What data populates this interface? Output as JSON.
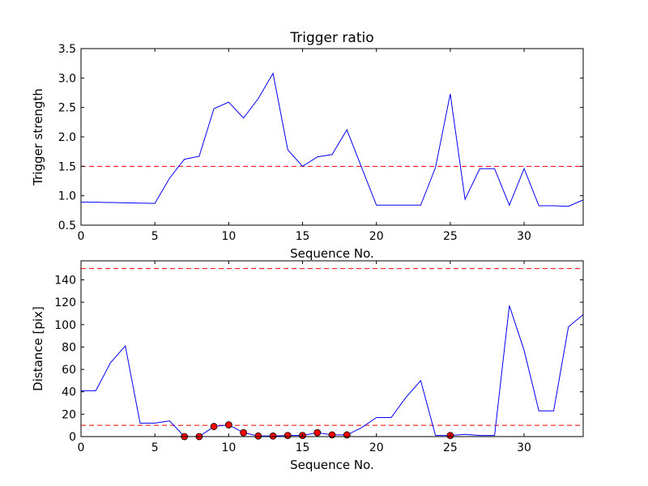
{
  "chart_data": [
    {
      "type": "line",
      "title": "Trigger ratio",
      "xlabel": "Sequence No.",
      "ylabel": "Trigger strength",
      "xlim": [
        0,
        34
      ],
      "ylim": [
        0.5,
        3.5
      ],
      "xticks": [
        0,
        5,
        10,
        15,
        20,
        25,
        30
      ],
      "xtick_labels": [
        "0",
        "5",
        "10",
        "15",
        "20",
        "25",
        "30"
      ],
      "yticks": [
        0.5,
        1.0,
        1.5,
        2.0,
        2.5,
        3.0,
        3.5
      ],
      "ytick_labels": [
        "0.5",
        "1.0",
        "1.5",
        "2.0",
        "2.5",
        "3.0",
        "3.5"
      ],
      "grid": false,
      "line_color": "#0000ff",
      "series": [
        {
          "x": [
            0,
            1,
            2,
            3,
            4,
            5,
            6,
            7,
            8,
            9,
            10,
            11,
            12,
            13,
            14,
            15,
            16,
            17,
            18,
            19,
            20,
            21,
            22,
            23,
            24,
            25,
            26,
            27,
            28,
            29,
            30,
            31,
            32,
            33,
            34
          ],
          "y": [
            0.89,
            0.89,
            0.885,
            0.88,
            0.875,
            0.87,
            1.3,
            1.62,
            1.67,
            2.48,
            2.59,
            2.32,
            2.65,
            3.08,
            1.78,
            1.5,
            1.66,
            1.7,
            2.12,
            1.48,
            0.84,
            0.84,
            0.84,
            0.84,
            1.48,
            2.73,
            0.94,
            1.46,
            1.46,
            0.84,
            1.46,
            0.83,
            0.83,
            0.82,
            0.93
          ]
        }
      ],
      "thresholds": [
        {
          "y": 1.5,
          "color": "#ff0000",
          "style": "dashed"
        }
      ]
    },
    {
      "type": "line",
      "title": "",
      "xlabel": "Sequence No.",
      "ylabel": "Distance [pix]",
      "xlim": [
        0,
        34
      ],
      "ylim": [
        0,
        157
      ],
      "xticks": [
        0,
        5,
        10,
        15,
        20,
        25,
        30
      ],
      "xtick_labels": [
        "0",
        "5",
        "10",
        "15",
        "20",
        "25",
        "30"
      ],
      "yticks": [
        0,
        20,
        40,
        60,
        80,
        100,
        120,
        140
      ],
      "ytick_labels": [
        "0",
        "20",
        "40",
        "60",
        "80",
        "100",
        "120",
        "140"
      ],
      "grid": false,
      "line_color": "#0000ff",
      "marker_color": "#ff0000",
      "series": [
        {
          "x": [
            0,
            1,
            2,
            3,
            4,
            5,
            6,
            7,
            8,
            9,
            10,
            11,
            12,
            13,
            14,
            15,
            16,
            17,
            18,
            19,
            20,
            21,
            22,
            23,
            24,
            25,
            26,
            27,
            28,
            29,
            30,
            31,
            32,
            33,
            34
          ],
          "y": [
            41,
            41,
            66,
            81,
            12,
            12,
            14,
            0,
            0,
            9,
            10.5,
            3.5,
            0.5,
            0.5,
            1,
            1,
            3.5,
            1.5,
            1.5,
            8,
            17,
            17,
            35,
            50,
            1,
            1,
            2,
            1,
            1,
            117,
            77,
            23,
            23,
            98,
            109
          ]
        }
      ],
      "markers": {
        "x": [
          7,
          8,
          9,
          10,
          11,
          12,
          13,
          14,
          15,
          16,
          17,
          18,
          25
        ],
        "y": [
          0,
          0,
          9,
          10.5,
          3.5,
          0.5,
          0.5,
          1,
          1,
          3.5,
          1.5,
          1.5,
          1
        ]
      },
      "thresholds": [
        {
          "y": 150,
          "color": "#ff0000",
          "style": "dashed"
        },
        {
          "y": 10,
          "color": "#ff0000",
          "style": "dashed"
        }
      ]
    }
  ]
}
